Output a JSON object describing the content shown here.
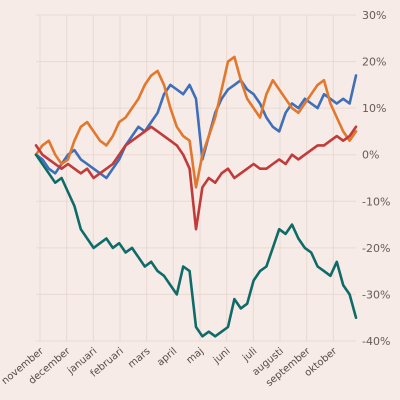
{
  "chart_data": {
    "type": "line",
    "title": "",
    "xlabel": "",
    "ylabel": "",
    "x_ticks": [
      "november",
      "december",
      "januari",
      "februari",
      "mars",
      "april",
      "maj",
      "juni",
      "juli",
      "augusti",
      "september",
      "oktober"
    ],
    "y_ticks": [
      "30%",
      "20%",
      "10%",
      "0%",
      "-10%",
      "-20%",
      "-30%",
      "-40%"
    ],
    "ylim": [
      -40,
      30
    ],
    "xlim": [
      0,
      100
    ],
    "grid": true,
    "legend": "none",
    "series": [
      {
        "color": "#3f6fb8",
        "x": [
          0,
          2,
          4,
          6,
          8,
          10,
          12,
          14,
          16,
          18,
          20,
          22,
          24,
          26,
          28,
          30,
          32,
          34,
          36,
          38,
          40,
          42,
          44,
          46,
          48,
          50,
          52,
          54,
          56,
          58,
          60,
          62,
          64,
          66,
          68,
          70,
          72,
          74,
          76,
          78,
          80,
          82,
          84,
          86,
          88,
          90,
          92,
          94,
          96,
          98,
          100
        ],
        "y": [
          0,
          -1,
          -3,
          -4,
          -2,
          0,
          1,
          -1,
          -2,
          -3,
          -4,
          -5,
          -3,
          -1,
          2,
          4,
          6,
          5,
          7,
          9,
          13,
          15,
          14,
          13,
          15,
          12,
          -1,
          4,
          9,
          12,
          14,
          15,
          16,
          14,
          13,
          11,
          8,
          6,
          5,
          9,
          11,
          10,
          12,
          11,
          10,
          13,
          12,
          11,
          12,
          11,
          17
        ]
      },
      {
        "color": "#e2782e",
        "x": [
          0,
          2,
          4,
          6,
          8,
          10,
          12,
          14,
          16,
          18,
          20,
          22,
          24,
          26,
          28,
          30,
          32,
          34,
          36,
          38,
          40,
          42,
          44,
          46,
          48,
          50,
          52,
          54,
          56,
          58,
          60,
          62,
          64,
          66,
          68,
          70,
          72,
          74,
          76,
          78,
          80,
          82,
          84,
          86,
          88,
          90,
          92,
          94,
          96,
          98,
          100
        ],
        "y": [
          0,
          2,
          3,
          0,
          -2,
          -1,
          3,
          6,
          7,
          5,
          3,
          2,
          4,
          7,
          8,
          10,
          12,
          15,
          17,
          18,
          15,
          10,
          6,
          4,
          3,
          -7,
          0,
          4,
          8,
          14,
          20,
          21,
          16,
          12,
          10,
          8,
          13,
          16,
          14,
          12,
          10,
          9,
          11,
          13,
          15,
          16,
          11,
          8,
          5,
          3,
          5
        ]
      },
      {
        "color": "#c23a3a",
        "x": [
          0,
          2,
          4,
          6,
          8,
          10,
          12,
          14,
          16,
          18,
          20,
          22,
          24,
          26,
          28,
          30,
          32,
          34,
          36,
          38,
          40,
          42,
          44,
          46,
          48,
          50,
          52,
          54,
          56,
          58,
          60,
          62,
          64,
          66,
          68,
          70,
          72,
          74,
          76,
          78,
          80,
          82,
          84,
          86,
          88,
          90,
          92,
          94,
          96,
          98,
          100
        ],
        "y": [
          2,
          0,
          -1,
          -2,
          -3,
          -2,
          -3,
          -4,
          -3,
          -5,
          -4,
          -3,
          -2,
          0,
          2,
          3,
          4,
          5,
          6,
          5,
          4,
          3,
          2,
          0,
          -3,
          -16,
          -7,
          -5,
          -6,
          -4,
          -3,
          -5,
          -4,
          -3,
          -2,
          -3,
          -3,
          -2,
          -1,
          -2,
          0,
          -1,
          0,
          1,
          2,
          2,
          3,
          4,
          3,
          4,
          6
        ]
      },
      {
        "color": "#0f6b68",
        "x": [
          0,
          2,
          4,
          6,
          8,
          10,
          12,
          14,
          16,
          18,
          20,
          22,
          24,
          26,
          28,
          30,
          32,
          34,
          36,
          38,
          40,
          42,
          44,
          46,
          48,
          50,
          52,
          54,
          56,
          58,
          60,
          62,
          64,
          66,
          68,
          70,
          72,
          74,
          76,
          78,
          80,
          82,
          84,
          86,
          88,
          90,
          92,
          94,
          96,
          98,
          100
        ],
        "y": [
          0,
          -2,
          -4,
          -6,
          -5,
          -8,
          -11,
          -16,
          -18,
          -20,
          -19,
          -18,
          -20,
          -19,
          -21,
          -20,
          -22,
          -24,
          -23,
          -25,
          -26,
          -28,
          -30,
          -24,
          -25,
          -37,
          -39,
          -38,
          -39,
          -38,
          -37,
          -31,
          -33,
          -32,
          -27,
          -25,
          -24,
          -20,
          -16,
          -17,
          -15,
          -18,
          -20,
          -21,
          -24,
          -25,
          -26,
          -23,
          -28,
          -30,
          -35
        ]
      }
    ]
  }
}
